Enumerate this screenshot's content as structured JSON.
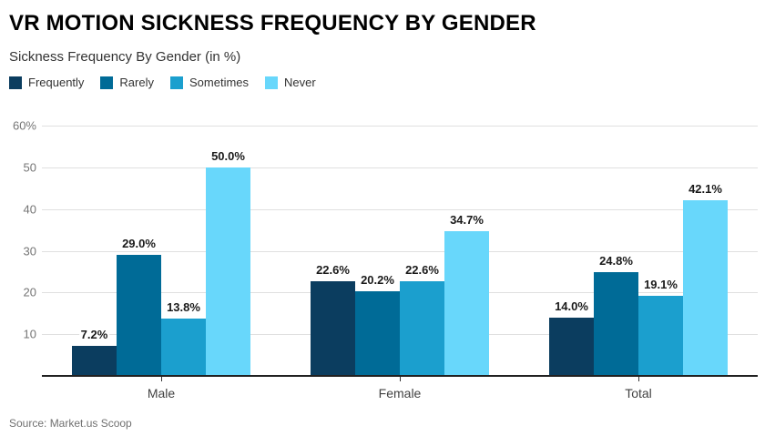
{
  "header": {
    "title": "VR MOTION SICKNESS FREQUENCY BY GENDER",
    "subtitle": "Sickness Frequency By Gender (in %)"
  },
  "footer": {
    "source": "Source: Market.us Scoop"
  },
  "colors": {
    "frequently": "#0b3d5f",
    "rarely": "#006b97",
    "sometimes": "#1b9fce",
    "never": "#68d7fb",
    "gridline": "#e0e0e0",
    "axis_line": "#212121",
    "ytick_text": "#757575",
    "category_text": "#424242",
    "value_text": "#1a1a1a"
  },
  "chart_data": {
    "type": "bar",
    "title": "VR MOTION SICKNESS FREQUENCY BY GENDER",
    "subtitle": "Sickness Frequency By Gender (in %)",
    "categories": [
      "Male",
      "Female",
      "Total"
    ],
    "series": [
      {
        "name": "Frequently",
        "color": "#0b3d5f",
        "values": [
          7.2,
          22.6,
          14.0
        ]
      },
      {
        "name": "Rarely",
        "color": "#006b97",
        "values": [
          29.0,
          20.2,
          24.8
        ]
      },
      {
        "name": "Sometimes",
        "color": "#1b9fce",
        "values": [
          13.8,
          22.6,
          19.1
        ]
      },
      {
        "name": "Never",
        "color": "#68d7fb",
        "values": [
          50.0,
          34.7,
          42.1
        ]
      }
    ],
    "data_labels": [
      [
        "7.2%",
        "29.0%",
        "13.8%",
        "50.0%"
      ],
      [
        "22.6%",
        "20.2%",
        "22.6%",
        "34.7%"
      ],
      [
        "14.0%",
        "24.8%",
        "19.1%",
        "42.1%"
      ]
    ],
    "xlabel": "",
    "ylabel": "",
    "ylim": [
      0,
      60
    ],
    "yticks": [
      10,
      20,
      30,
      40,
      50,
      60
    ],
    "ytick_labels": [
      "10",
      "20",
      "30",
      "40",
      "50",
      "60%"
    ],
    "grid": true,
    "legend_position": "top-left"
  }
}
